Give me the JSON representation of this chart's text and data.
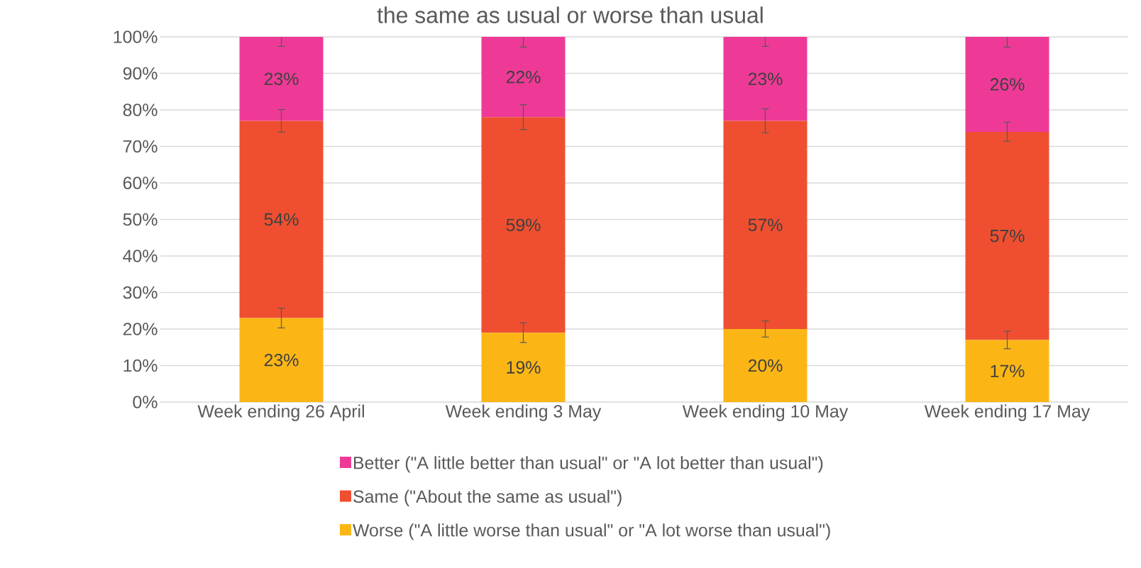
{
  "chart_data": {
    "type": "bar",
    "title": "the same as usual or worse than usual",
    "stacked": true,
    "categories": [
      "Week ending 26 April",
      "Week ending 3 May",
      "Week ending 10 May",
      "Week ending 17 May"
    ],
    "series": [
      {
        "name": "Worse (\"A little worse than usual\" or \"A lot worse than usual\")",
        "color": "#fbb615",
        "values": [
          23,
          19,
          20,
          17
        ],
        "errors": [
          2.7,
          2.7,
          2.2,
          2.4
        ],
        "value_labels": [
          "23%",
          "19%",
          "20%",
          "17%"
        ]
      },
      {
        "name": "Same (\"About the same as usual\")",
        "color": "#ef4f30",
        "values": [
          54,
          59,
          57,
          57
        ],
        "errors": [
          3.1,
          3.4,
          3.3,
          2.6
        ],
        "value_labels": [
          "54%",
          "59%",
          "57%",
          "57%"
        ]
      },
      {
        "name": "Better (\"A little better than usual\" or \"A lot better than usual\")",
        "color": "#ee3a96",
        "values": [
          23,
          22,
          23,
          26
        ],
        "errors": [
          2.6,
          2.8,
          2.6,
          2.8
        ],
        "value_labels": [
          "23%",
          "22%",
          "23%",
          "26%"
        ]
      }
    ],
    "ylim": [
      0,
      100
    ],
    "yticks": [
      {
        "value": 0,
        "label": "0%"
      },
      {
        "value": 10,
        "label": "10%"
      },
      {
        "value": 20,
        "label": "20%"
      },
      {
        "value": 30,
        "label": "30%"
      },
      {
        "value": 40,
        "label": "40%"
      },
      {
        "value": 50,
        "label": "50%"
      },
      {
        "value": 60,
        "label": "60%"
      },
      {
        "value": 70,
        "label": "70%"
      },
      {
        "value": 80,
        "label": "80%"
      },
      {
        "value": 90,
        "label": "90%"
      },
      {
        "value": 100,
        "label": "100%"
      }
    ],
    "grid": "y",
    "legend": "bottom"
  }
}
